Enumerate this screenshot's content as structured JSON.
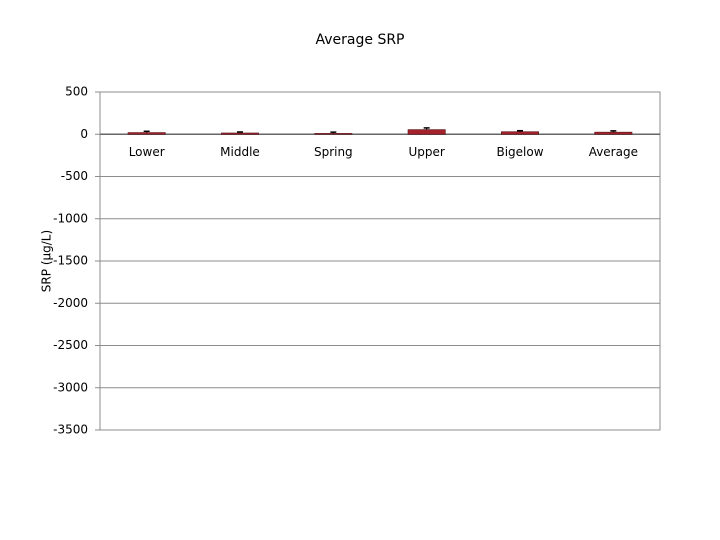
{
  "chart_data": {
    "type": "bar",
    "title": "Average SRP",
    "y_label": "SRP (µg/L)",
    "categories": [
      "Lower",
      "Middle",
      "Spring",
      "Upper",
      "Bigelow",
      "Average"
    ],
    "values": [
      20,
      15,
      10,
      55,
      30,
      25
    ],
    "errors": [
      15,
      12,
      15,
      20,
      12,
      15
    ],
    "color": "#a3222c",
    "ylim": [
      -3500,
      500
    ],
    "yticks": [
      -3500,
      -3000,
      -2500,
      -2000,
      -1500,
      -1000,
      -500,
      0,
      500
    ],
    "grid": true
  }
}
